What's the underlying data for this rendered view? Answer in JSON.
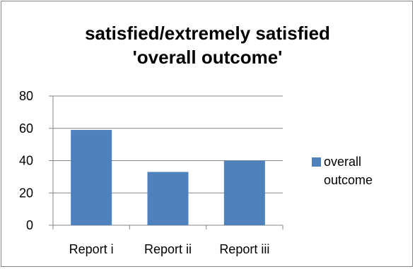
{
  "chart_data": {
    "type": "bar",
    "title_lines": [
      "satisfied/extremely satisfied",
      "'overall outcome'"
    ],
    "categories": [
      "Report i",
      "Report ii",
      "Report iii"
    ],
    "series": [
      {
        "name": "overall outcome",
        "values": [
          59,
          33,
          40
        ],
        "color": "#4f81bd"
      }
    ],
    "yticks": [
      "0",
      "20",
      "40",
      "60",
      "80"
    ],
    "ylim": [
      0,
      80
    ],
    "grid": true,
    "legend_position": "right",
    "xlabel": "",
    "ylabel": ""
  }
}
